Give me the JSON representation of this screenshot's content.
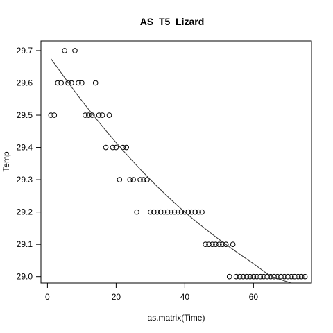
{
  "chart_data": {
    "type": "scatter",
    "title": "AS_T5_Lizard",
    "xlabel": "as.matrix(Time)",
    "ylabel": "Temp",
    "xlim": [
      -1.9,
      76.9
    ],
    "ylim": [
      28.98,
      29.73
    ],
    "x_ticks": [
      0,
      20,
      40,
      60
    ],
    "y_ticks": [
      29.0,
      29.1,
      29.2,
      29.3,
      29.4,
      29.5,
      29.6,
      29.7
    ],
    "grid": false,
    "legend": "none",
    "points": [
      [
        1,
        29.5
      ],
      [
        2,
        29.5
      ],
      [
        3,
        29.6
      ],
      [
        4,
        29.6
      ],
      [
        5,
        29.7
      ],
      [
        6,
        29.6
      ],
      [
        7,
        29.6
      ],
      [
        8,
        29.7
      ],
      [
        9,
        29.6
      ],
      [
        10,
        29.6
      ],
      [
        11,
        29.5
      ],
      [
        12,
        29.5
      ],
      [
        13,
        29.5
      ],
      [
        14,
        29.6
      ],
      [
        15,
        29.5
      ],
      [
        16,
        29.5
      ],
      [
        17,
        29.4
      ],
      [
        18,
        29.5
      ],
      [
        19,
        29.4
      ],
      [
        20,
        29.4
      ],
      [
        21,
        29.3
      ],
      [
        22,
        29.4
      ],
      [
        23,
        29.4
      ],
      [
        24,
        29.3
      ],
      [
        25,
        29.3
      ],
      [
        26,
        29.2
      ],
      [
        27,
        29.3
      ],
      [
        28,
        29.3
      ],
      [
        29,
        29.3
      ],
      [
        30,
        29.2
      ],
      [
        31,
        29.2
      ],
      [
        32,
        29.2
      ],
      [
        33,
        29.2
      ],
      [
        34,
        29.2
      ],
      [
        35,
        29.2
      ],
      [
        36,
        29.2
      ],
      [
        37,
        29.2
      ],
      [
        38,
        29.2
      ],
      [
        39,
        29.2
      ],
      [
        40,
        29.2
      ],
      [
        41,
        29.2
      ],
      [
        42,
        29.2
      ],
      [
        43,
        29.2
      ],
      [
        44,
        29.2
      ],
      [
        45,
        29.2
      ],
      [
        46,
        29.1
      ],
      [
        47,
        29.1
      ],
      [
        48,
        29.1
      ],
      [
        49,
        29.1
      ],
      [
        50,
        29.1
      ],
      [
        51,
        29.1
      ],
      [
        52,
        29.1
      ],
      [
        53,
        29.0
      ],
      [
        54,
        29.1
      ],
      [
        55,
        29.0
      ],
      [
        56,
        29.0
      ],
      [
        57,
        29.0
      ],
      [
        58,
        29.0
      ],
      [
        59,
        29.0
      ],
      [
        60,
        29.0
      ],
      [
        61,
        29.0
      ],
      [
        62,
        29.0
      ],
      [
        63,
        29.0
      ],
      [
        64,
        29.0
      ],
      [
        65,
        29.0
      ],
      [
        66,
        29.0
      ],
      [
        67,
        29.0
      ],
      [
        68,
        29.0
      ],
      [
        69,
        29.0
      ],
      [
        70,
        29.0
      ],
      [
        71,
        29.0
      ],
      [
        72,
        29.0
      ],
      [
        73,
        29.0
      ],
      [
        74,
        29.0
      ],
      [
        75,
        29.0
      ]
    ],
    "fit_curve": [
      [
        1,
        29.675
      ],
      [
        10,
        29.545
      ],
      [
        20,
        29.415
      ],
      [
        30,
        29.3
      ],
      [
        40,
        29.2
      ],
      [
        50,
        29.115
      ],
      [
        60,
        29.04
      ],
      [
        65,
        29.003
      ],
      [
        71,
        28.98
      ]
    ]
  }
}
